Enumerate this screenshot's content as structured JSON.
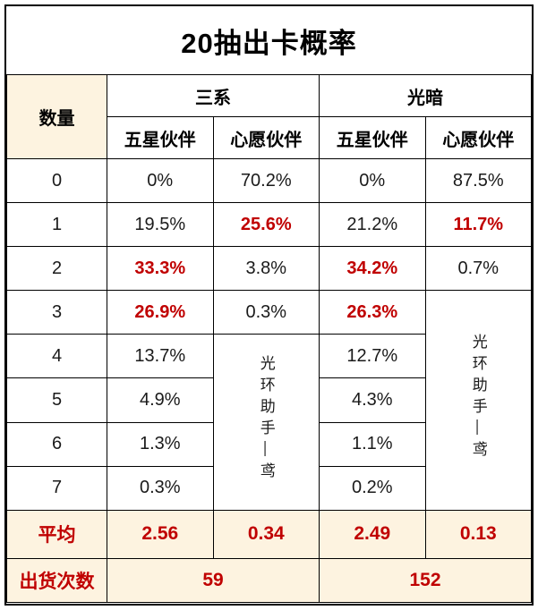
{
  "colors": {
    "accent_red": "#c00000",
    "panel_beige": "#fdf3e0",
    "border_black": "#000000",
    "text_black": "#1a1a1a"
  },
  "chart_data": {
    "type": "table",
    "title": "20抽出卡概率",
    "corner_header": "数量",
    "column_groups": [
      {
        "label": "三系",
        "subcolumns": [
          "五星伙伴",
          "心愿伙伴"
        ]
      },
      {
        "label": "光暗",
        "subcolumns": [
          "五星伙伴",
          "心愿伙伴"
        ]
      }
    ],
    "rows": [
      {
        "qty": "0",
        "tri_five": "0%",
        "tri_wish": "70.2%",
        "ld_five": "0%",
        "ld_wish": "87.5%"
      },
      {
        "qty": "1",
        "tri_five": "19.5%",
        "tri_wish": "25.6%",
        "ld_five": "21.2%",
        "ld_wish": "11.7%"
      },
      {
        "qty": "2",
        "tri_five": "33.3%",
        "tri_wish": "3.8%",
        "ld_five": "34.2%",
        "ld_wish": "0.7%"
      },
      {
        "qty": "3",
        "tri_five": "26.9%",
        "tri_wish": "0.3%",
        "ld_five": "26.3%"
      },
      {
        "qty": "4",
        "tri_five": "13.7%",
        "ld_five": "12.7%"
      },
      {
        "qty": "5",
        "tri_five": "4.9%",
        "ld_five": "4.3%"
      },
      {
        "qty": "6",
        "tri_five": "1.3%",
        "ld_five": "1.1%"
      },
      {
        "qty": "7",
        "tri_five": "0.3%",
        "ld_five": "0.2%"
      }
    ],
    "emphasized_red_cells": [
      {
        "row": 1,
        "col": "tri_wish"
      },
      {
        "row": 1,
        "col": "ld_wish"
      },
      {
        "row": 2,
        "col": "tri_five"
      },
      {
        "row": 2,
        "col": "ld_five"
      },
      {
        "row": 3,
        "col": "tri_five"
      },
      {
        "row": 3,
        "col": "ld_five"
      }
    ],
    "watermark": "光环助手—鸢",
    "summary": {
      "average_label": "平均",
      "average": {
        "tri_five": "2.56",
        "tri_wish": "0.34",
        "ld_five": "2.49",
        "ld_wish": "0.13"
      },
      "shipments_label": "出货次数",
      "shipments": {
        "tri": "59",
        "ld": "152"
      }
    }
  }
}
